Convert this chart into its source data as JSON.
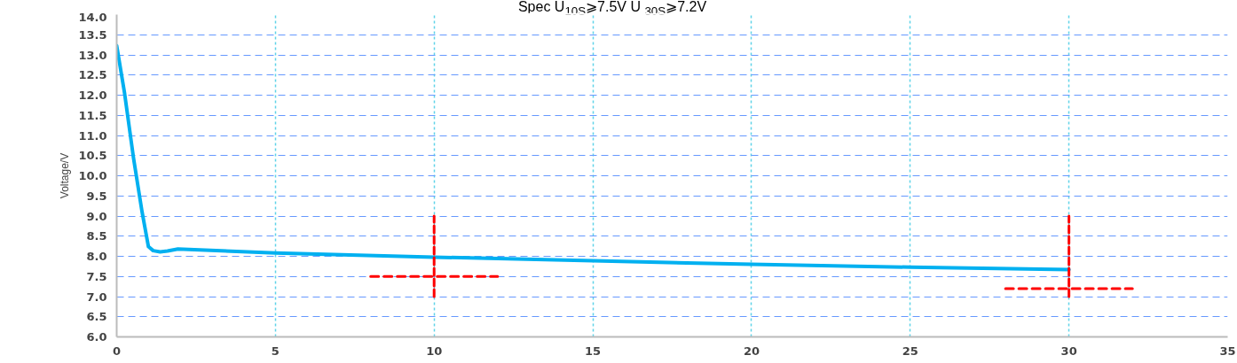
{
  "chart_data": {
    "type": "line",
    "title": "Spec U$_{10S}$⩾7.5V U $_{30S}$⩾7.2V",
    "ylabel": "Voltage/V",
    "xlim": [
      0,
      35
    ],
    "xticks": [
      0,
      5,
      10,
      15,
      20,
      25,
      30,
      35
    ],
    "ylim": [
      6,
      14
    ],
    "yticks": [
      {
        "value": 6,
        "label": "6.0"
      },
      {
        "value": 6.5,
        "label": "6.5"
      },
      {
        "value": 7,
        "label": "7.0"
      },
      {
        "value": 7.5,
        "label": "7.5"
      },
      {
        "value": 8,
        "label": "8.0"
      },
      {
        "value": 8.5,
        "label": "8.5"
      },
      {
        "value": 9,
        "label": "9.0"
      },
      {
        "value": 9.5,
        "label": "9.5"
      },
      {
        "value": 10,
        "label": "10.0"
      },
      {
        "value": 10.5,
        "label": "10.5"
      },
      {
        "value": 11,
        "label": "11.0"
      },
      {
        "value": 11.5,
        "label": "11.5"
      },
      {
        "value": 12,
        "label": "12.0"
      },
      {
        "value": 12.5,
        "label": "12.5"
      },
      {
        "value": 13,
        "label": "13.0"
      },
      {
        "value": 13.5,
        "label": "13.5"
      },
      {
        "value": 14,
        "label": "14.0"
      }
    ],
    "grid": true,
    "marker": "none",
    "series": [
      {
        "color": "#00b0f0",
        "line_style": "solid",
        "x": [
          0,
          0.25,
          0.53,
          0.8,
          1.0,
          1.15,
          1.37,
          1.6,
          1.93,
          5,
          10,
          15,
          20,
          25,
          30
        ],
        "values": [
          13.23,
          12.04,
          10.44,
          9.1,
          8.24,
          8.14,
          8.11,
          8.13,
          8.18,
          8.08,
          7.98,
          7.89,
          7.8,
          7.73,
          7.67
        ]
      },
      {
        "color": "#ff0000",
        "line_style": "dashed",
        "x": [
          8,
          12
        ],
        "values": [
          7.5,
          7.5
        ]
      },
      {
        "color": "#ff0000",
        "line_style": "dashed",
        "x": [
          10,
          10
        ],
        "values": [
          7.0,
          9.0
        ]
      },
      {
        "color": "#ff0000",
        "line_style": "dashed",
        "x": [
          28,
          32
        ],
        "values": [
          7.2,
          7.2
        ]
      },
      {
        "color": "#ff0000",
        "line_style": "dashed",
        "x": [
          30,
          30
        ],
        "values": [
          7.0,
          9.0
        ]
      }
    ]
  }
}
